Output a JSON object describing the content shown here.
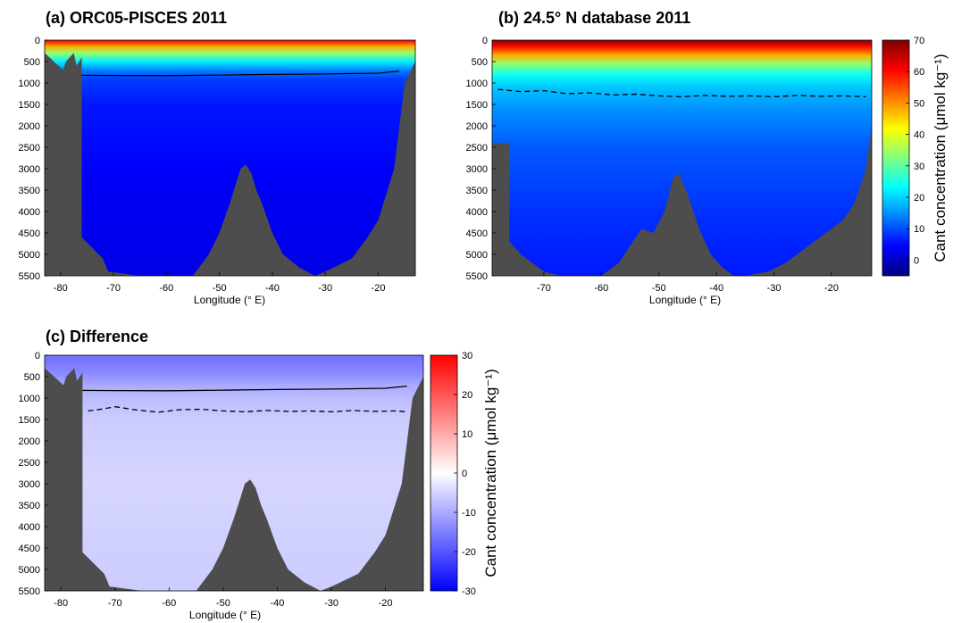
{
  "chart_data": [
    {
      "type": "heatmap",
      "title": "(a) ORC05-PISCES 2011",
      "xlabel": "Longitude (° E)",
      "ylabel": "",
      "xlim": [
        -83,
        -13
      ],
      "ylim": [
        0,
        5500
      ],
      "y_reversed": true,
      "xticks": [
        -80,
        -70,
        -60,
        -50,
        -40,
        -30,
        -20
      ],
      "yticks": [
        0,
        500,
        1000,
        1500,
        2000,
        2500,
        3000,
        3500,
        4000,
        4500,
        5000,
        5500
      ],
      "colormap": "jet",
      "clim": [
        -5,
        70
      ],
      "field_profile": [
        [
          0,
          62
        ],
        [
          150,
          48
        ],
        [
          300,
          34
        ],
        [
          500,
          22
        ],
        [
          700,
          14
        ],
        [
          900,
          9
        ],
        [
          1500,
          6
        ],
        [
          3000,
          4
        ],
        [
          5500,
          2.5
        ]
      ],
      "contour_solid": {
        "x": [
          -76,
          -70,
          -60,
          -50,
          -40,
          -30,
          -20,
          -16
        ],
        "y": [
          820,
          825,
          830,
          815,
          800,
          790,
          770,
          720
        ]
      },
      "bathymetry": {
        "x": [
          -83,
          -79.5,
          -79,
          -77.5,
          -77,
          -76,
          -76,
          -72,
          -71,
          -65,
          -62,
          -55,
          -52,
          -50,
          -48,
          -47,
          -46,
          -45,
          -44,
          -43,
          -42,
          -40,
          -38,
          -35,
          -32,
          -30,
          -25,
          -22,
          -20,
          -17,
          -16,
          -15,
          -13
        ],
        "y": [
          300,
          700,
          500,
          300,
          600,
          400,
          4600,
          5100,
          5400,
          5500,
          5500,
          5500,
          5000,
          4500,
          3800,
          3400,
          3000,
          2900,
          3100,
          3500,
          3800,
          4500,
          5000,
          5300,
          5500,
          5400,
          5100,
          4600,
          4200,
          3000,
          2000,
          1000,
          500
        ]
      }
    },
    {
      "type": "heatmap",
      "title": "(b) 24.5° N database 2011",
      "xlabel": "Longitude (° E)",
      "ylabel": "",
      "xlim": [
        -79,
        -13
      ],
      "ylim": [
        0,
        5500
      ],
      "y_reversed": true,
      "xticks": [
        -70,
        -60,
        -50,
        -40,
        -30,
        -20
      ],
      "yticks": [
        0,
        500,
        1000,
        1500,
        2000,
        2500,
        3000,
        3500,
        4000,
        4500,
        5000,
        5500
      ],
      "colormap": "jet",
      "clim": [
        -5,
        70
      ],
      "field_profile": [
        [
          0,
          70
        ],
        [
          150,
          60
        ],
        [
          350,
          48
        ],
        [
          550,
          34
        ],
        [
          800,
          24
        ],
        [
          1100,
          19
        ],
        [
          1600,
          15
        ],
        [
          2500,
          11
        ],
        [
          4000,
          8
        ],
        [
          5500,
          6
        ]
      ],
      "contour_dashed": {
        "x": [
          -78,
          -74,
          -70,
          -66,
          -62,
          -58,
          -54,
          -50,
          -46,
          -42,
          -38,
          -34,
          -30,
          -26,
          -22,
          -18,
          -14
        ],
        "y": [
          1150,
          1200,
          1180,
          1250,
          1230,
          1280,
          1260,
          1300,
          1320,
          1290,
          1310,
          1300,
          1320,
          1290,
          1310,
          1300,
          1320
        ]
      },
      "bathymetry": {
        "x": [
          -79,
          -79,
          -76,
          -76,
          -74,
          -72,
          -70,
          -67,
          -64,
          -60,
          -57,
          -55,
          -53,
          -51,
          -49,
          -47.5,
          -46.5,
          -45,
          -43,
          -41,
          -39,
          -37,
          -35,
          -31,
          -28,
          -26,
          -24,
          -21,
          -18,
          -16,
          -14,
          -13
        ],
        "y": [
          0,
          2400,
          2400,
          4700,
          5000,
          5200,
          5400,
          5500,
          5500,
          5500,
          5200,
          4800,
          4400,
          4500,
          4000,
          3200,
          3100,
          3600,
          4400,
          5000,
          5300,
          5500,
          5500,
          5400,
          5200,
          5000,
          4800,
          4500,
          4200,
          3800,
          3000,
          2000
        ]
      }
    },
    {
      "type": "heatmap",
      "title": "(c) Difference",
      "xlabel": "Longitude (° E)",
      "ylabel": "",
      "xlim": [
        -83,
        -13
      ],
      "ylim": [
        0,
        5500
      ],
      "y_reversed": true,
      "xticks": [
        -80,
        -70,
        -60,
        -50,
        -40,
        -30,
        -20
      ],
      "yticks": [
        0,
        500,
        1000,
        1500,
        2000,
        2500,
        3000,
        3500,
        4000,
        4500,
        5000,
        5500
      ],
      "colormap": "blue-white-red",
      "clim": [
        -30,
        30
      ],
      "field_profile": [
        [
          0,
          -17
        ],
        [
          400,
          -14
        ],
        [
          700,
          -10
        ],
        [
          1000,
          -8
        ],
        [
          1500,
          -6
        ],
        [
          3000,
          -5
        ],
        [
          5500,
          -6
        ]
      ],
      "contour_solid": {
        "x": [
          -76,
          -70,
          -60,
          -50,
          -40,
          -30,
          -20,
          -16
        ],
        "y": [
          820,
          825,
          830,
          815,
          800,
          790,
          770,
          720
        ]
      },
      "contour_dashed": {
        "x": [
          -75,
          -72,
          -70,
          -66,
          -62,
          -58,
          -54,
          -50,
          -46,
          -42,
          -38,
          -34,
          -30,
          -26,
          -22,
          -18,
          -16
        ],
        "y": [
          1300,
          1250,
          1200,
          1280,
          1330,
          1270,
          1260,
          1300,
          1320,
          1290,
          1310,
          1300,
          1320,
          1290,
          1310,
          1300,
          1320
        ]
      },
      "bathymetry": {
        "x": [
          -83,
          -79.5,
          -79,
          -77.5,
          -77,
          -76,
          -76,
          -72,
          -71,
          -65,
          -62,
          -55,
          -52,
          -50,
          -48,
          -47,
          -46,
          -45,
          -44,
          -43,
          -42,
          -40,
          -38,
          -35,
          -32,
          -30,
          -25,
          -22,
          -20,
          -17,
          -16,
          -15,
          -13
        ],
        "y": [
          300,
          700,
          500,
          300,
          600,
          400,
          4600,
          5100,
          5400,
          5500,
          5500,
          5500,
          5000,
          4500,
          3800,
          3400,
          3000,
          2900,
          3100,
          3500,
          3800,
          4500,
          5000,
          5300,
          5500,
          5400,
          5100,
          4600,
          4200,
          3000,
          2000,
          1000,
          500
        ]
      }
    }
  ],
  "colorbars": [
    {
      "label": "Cant concentration (μmol kg⁻¹)",
      "range": [
        -5,
        70
      ],
      "ticks": [
        0,
        10,
        20,
        30,
        40,
        50,
        60,
        70
      ],
      "colormap": "jet"
    },
    {
      "label": "Cant concentration (μmol kg⁻¹)",
      "range": [
        -30,
        30
      ],
      "ticks": [
        -30,
        -20,
        -10,
        0,
        10,
        20,
        30
      ],
      "colormap": "blue-white-red"
    }
  ],
  "colors": {
    "land": "#4d4d4d",
    "contour": "#000000"
  }
}
